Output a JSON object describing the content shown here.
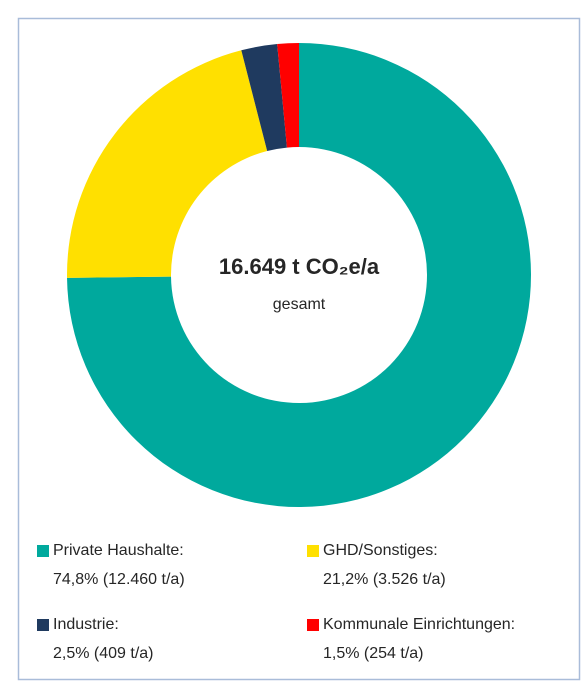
{
  "chart_data": {
    "type": "donut",
    "center_title": "16.649 t CO₂e/a",
    "center_subtitle": "gesamt",
    "categories": [
      "Private Haushalte:",
      "GHD/Sonstiges:",
      "Industrie:",
      "Kommunale Einrichtungen:"
    ],
    "values": [
      74.8,
      21.2,
      2.5,
      1.5
    ],
    "value_labels": [
      "74,8% (12.460 t/a)",
      "21,2% (3.526 t/a)",
      "2,5% (409 t/a)",
      "1,5% (254 t/a)"
    ],
    "colors": [
      "#00a99d",
      "#ffe000",
      "#1f3a5f",
      "#ff0000"
    ],
    "legend": "bottom"
  }
}
